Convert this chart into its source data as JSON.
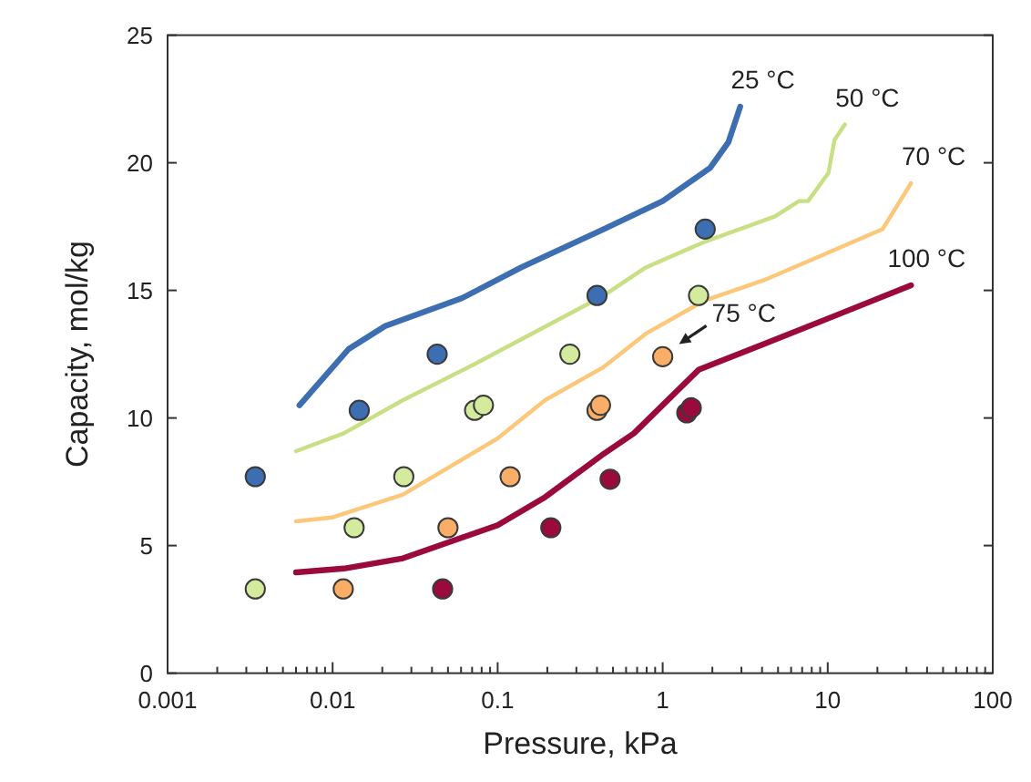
{
  "chart_data": {
    "type": "line",
    "xlabel": "Pressure, kPa",
    "ylabel": "Capacity, mol/kg",
    "log": "x",
    "grid": false,
    "xlim": [
      0.001,
      100
    ],
    "ylim": [
      0,
      25
    ],
    "xticks": [
      0.001,
      {
        "value": 0.002,
        "label": null
      },
      {
        "value": 0.003,
        "label": null
      },
      {
        "value": 0.004,
        "label": null
      },
      {
        "value": 0.005,
        "label": null
      },
      {
        "value": 0.006,
        "label": null
      },
      {
        "value": 0.007,
        "label": null
      },
      {
        "value": 0.008,
        "label": null
      },
      {
        "value": 0.009,
        "label": null
      },
      0.01,
      {
        "value": 0.02,
        "label": null
      },
      {
        "value": 0.03,
        "label": null
      },
      {
        "value": 0.04,
        "label": null
      },
      {
        "value": 0.05,
        "label": null
      },
      {
        "value": 0.06,
        "label": null
      },
      {
        "value": 0.07,
        "label": null
      },
      {
        "value": 0.08,
        "label": null
      },
      {
        "value": 0.09,
        "label": null
      },
      0.1,
      {
        "value": 0.2,
        "label": null
      },
      {
        "value": 0.3,
        "label": null
      },
      {
        "value": 0.4,
        "label": null
      },
      {
        "value": 0.5,
        "label": null
      },
      {
        "value": 0.6,
        "label": null
      },
      {
        "value": 0.7,
        "label": null
      },
      {
        "value": 0.8,
        "label": null
      },
      {
        "value": 0.9,
        "label": null
      },
      1,
      {
        "value": 2,
        "label": null
      },
      {
        "value": 3,
        "label": null
      },
      {
        "value": 4,
        "label": null
      },
      {
        "value": 5,
        "label": null
      },
      {
        "value": 6,
        "label": null
      },
      {
        "value": 7,
        "label": null
      },
      {
        "value": 8,
        "label": null
      },
      {
        "value": 9,
        "label": null
      },
      10,
      {
        "value": 20,
        "label": null
      },
      {
        "value": 30,
        "label": null
      },
      {
        "value": 40,
        "label": null
      },
      {
        "value": 50,
        "label": null
      },
      {
        "value": 60,
        "label": null
      },
      {
        "value": 70,
        "label": null
      },
      {
        "value": 80,
        "label": null
      },
      {
        "value": 90,
        "label": null
      },
      100
    ],
    "yticks": [
      0,
      5,
      10,
      15,
      20,
      25
    ],
    "series": [
      {
        "name": "25 °C",
        "color": "#3d6eb1",
        "marker": "none",
        "line_style": "solid",
        "x": [
          0.0063,
          0.0125,
          0.0208,
          0.061,
          0.139,
          0.44,
          1.0,
          1.94,
          2.5,
          2.95
        ],
        "values": [
          10.5,
          12.7,
          13.6,
          14.7,
          15.9,
          17.4,
          18.5,
          19.8,
          20.8,
          22.2
        ]
      },
      {
        "name": "50 °C",
        "color": "#c8df84",
        "marker": "none",
        "line_style": "solid",
        "x": [
          0.006,
          0.0117,
          0.0267,
          0.072,
          0.44,
          0.79,
          1.79,
          4.8,
          6.7,
          7.6,
          10.1,
          11.0,
          12.7
        ],
        "values": [
          8.7,
          9.4,
          10.7,
          12.1,
          14.8,
          15.9,
          16.9,
          17.9,
          18.5,
          18.5,
          19.6,
          20.9,
          21.5
        ]
      },
      {
        "name": "70 °C",
        "color": "#fcc779",
        "marker": "none",
        "line_style": "solid",
        "x": [
          0.006,
          0.0099,
          0.0267,
          0.1,
          0.194,
          0.44,
          0.79,
          1.79,
          4.1,
          9.4,
          21.5,
          32
        ],
        "values": [
          5.95,
          6.1,
          7.0,
          9.2,
          10.7,
          12.0,
          13.3,
          14.6,
          15.4,
          16.4,
          17.4,
          19.2
        ]
      },
      {
        "name": "100 °C",
        "color": "#9b0a3c",
        "marker": "none",
        "line_style": "solid",
        "x": [
          0.006,
          0.0117,
          0.0267,
          0.1,
          0.194,
          0.44,
          0.67,
          1.66,
          4.1,
          11,
          32
        ],
        "values": [
          3.95,
          4.1,
          4.5,
          5.8,
          6.9,
          8.6,
          9.4,
          11.9,
          12.9,
          14.0,
          15.2
        ]
      },
      {
        "type": "scatter",
        "color": "#3d6eb1",
        "marker": "circle",
        "x": [
          0.0034,
          0.0145,
          0.043,
          0.4,
          1.81
        ],
        "values": [
          7.7,
          10.3,
          12.5,
          14.8,
          17.4
        ]
      },
      {
        "type": "scatter",
        "color": "#d4ea9c",
        "marker": "circle",
        "x": [
          0.0034,
          0.0135,
          0.027,
          0.0725,
          0.082,
          0.274,
          1.65
        ],
        "values": [
          3.3,
          5.7,
          7.7,
          10.3,
          10.5,
          12.5,
          14.8
        ]
      },
      {
        "type": "scatter",
        "color": "#f9ad66",
        "marker": "circle",
        "x": [
          0.0116,
          0.05,
          0.119,
          0.4,
          0.42,
          1.0
        ],
        "values": [
          3.3,
          5.7,
          7.7,
          10.3,
          10.5,
          12.4
        ]
      },
      {
        "type": "scatter",
        "color": "#9b0a3c",
        "marker": "circle",
        "x": [
          0.0464,
          0.21,
          0.48,
          1.4,
          1.49
        ],
        "values": [
          3.3,
          5.7,
          7.6,
          10.2,
          10.4
        ]
      }
    ],
    "annotations": [
      {
        "text": "75 °C",
        "x": 1.0,
        "y": 12.4
      }
    ]
  }
}
